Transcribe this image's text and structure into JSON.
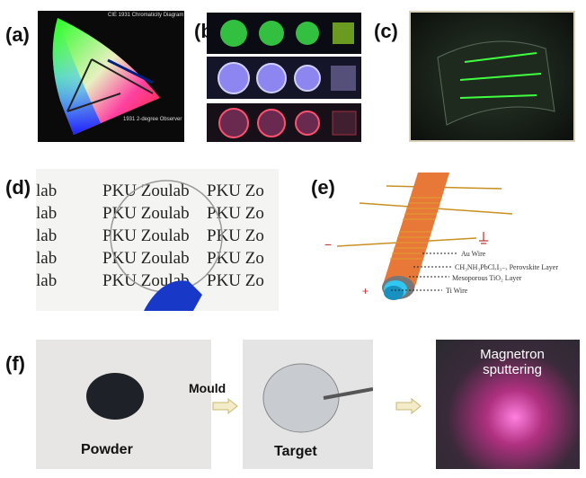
{
  "panel_labels": {
    "a": "(a)",
    "b": "(b)",
    "c": "(c)",
    "d": "(d)",
    "e": "(e)",
    "f": "(f)"
  },
  "a": {
    "title": "CIE 1931 Chromaticity Diagram",
    "observer": "1931 2-degree Observer"
  },
  "d": {
    "watermark_text": "PKU Zoulab",
    "partial_left": "lab",
    "partial_right": "PKU Zo"
  },
  "e": {
    "minus": "−",
    "plus": "+",
    "layers": [
      "Au Wire",
      "CH₃NH₃PbClₓI₃₋ₓ Perovskite Layer",
      "Mesoporous TiO₂ Layer",
      "Ti Wire"
    ]
  },
  "f": {
    "powder": "Powder",
    "mould": "Mould",
    "target": "Target",
    "magnetron": "Magnetron sputtering"
  }
}
